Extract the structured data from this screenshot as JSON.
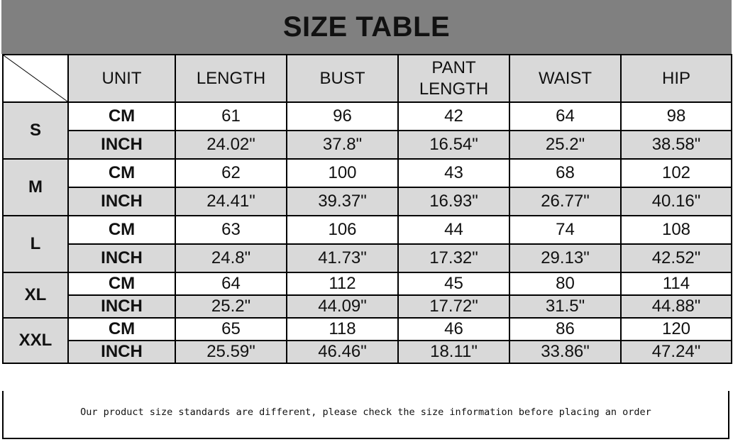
{
  "title": "SIZE TABLE",
  "headers": [
    "UNIT",
    "LENGTH",
    "BUST",
    "PANT LENGTH",
    "WAIST",
    "HIP"
  ],
  "sizes": [
    {
      "size": "S",
      "rows": [
        {
          "unit": "CM",
          "values": [
            "61",
            "96",
            "42",
            "64",
            "98"
          ]
        },
        {
          "unit": "INCH",
          "values": [
            "24.02\"",
            "37.8\"",
            "16.54\"",
            "25.2\"",
            "38.58\""
          ]
        }
      ]
    },
    {
      "size": "M",
      "rows": [
        {
          "unit": "CM",
          "values": [
            "62",
            "100",
            "43",
            "68",
            "102"
          ]
        },
        {
          "unit": "INCH",
          "values": [
            "24.41\"",
            "39.37\"",
            "16.93\"",
            "26.77\"",
            "40.16\""
          ]
        }
      ]
    },
    {
      "size": "L",
      "rows": [
        {
          "unit": "CM",
          "values": [
            "63",
            "106",
            "44",
            "74",
            "108"
          ]
        },
        {
          "unit": "INCH",
          "values": [
            "24.8\"",
            "41.73\"",
            "17.32\"",
            "29.13\"",
            "42.52\""
          ]
        }
      ]
    },
    {
      "size": "XL",
      "rows": [
        {
          "unit": "CM",
          "values": [
            "64",
            "112",
            "45",
            "80",
            "114"
          ]
        },
        {
          "unit": "INCH",
          "values": [
            "25.2\"",
            "44.09\"",
            "17.72\"",
            "31.5\"",
            "44.88\""
          ]
        }
      ]
    },
    {
      "size": "XXL",
      "rows": [
        {
          "unit": "CM",
          "values": [
            "65",
            "118",
            "46",
            "86",
            "120"
          ]
        },
        {
          "unit": "INCH",
          "values": [
            "25.59\"",
            "46.46\"",
            "18.11\"",
            "33.86\"",
            "47.24\""
          ]
        }
      ]
    }
  ],
  "footer_note": "Our product size standards are different, please check the size information before placing an order",
  "colors": {
    "title_bg": "#808080",
    "header_bg": "#d9d9d9",
    "stripe": "#d9d9d9"
  }
}
